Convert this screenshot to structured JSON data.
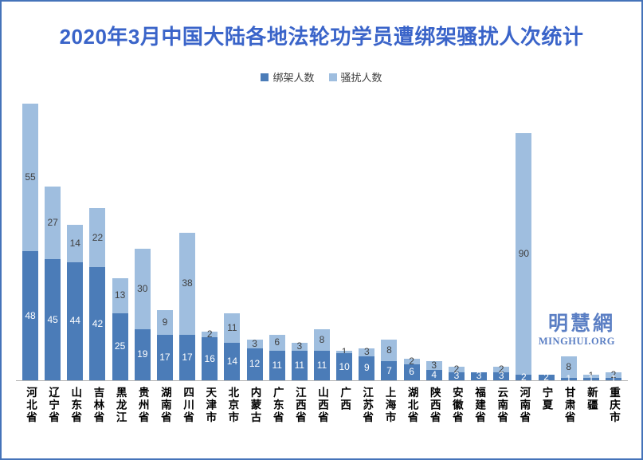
{
  "colors": {
    "frame": "#4573b9",
    "title": "#3a64c9",
    "axis": "#b3b3b3",
    "watermark": "#5b7fc4",
    "kidnapped_bar": "#4b7cb8",
    "harassed_bar": "#9fbedf",
    "kidnapped_label": "#ffffff",
    "harassed_label": "#404040"
  },
  "watermark": {
    "cn": "明慧網",
    "en": "MINGHUI.ORG"
  },
  "chart_data": {
    "type": "bar",
    "stacked": true,
    "title": "2020年3月中国大陆各地法轮功学员遭绑架骚扰人次统计",
    "xlabel": "",
    "ylabel": "",
    "ylim": [
      0,
      104
    ],
    "grid": false,
    "legend_position": "top",
    "value_labels": "center",
    "categories": [
      "河北省",
      "辽宁省",
      "山东省",
      "吉林省",
      "黑龙江",
      "贵州省",
      "湖南省",
      "四川省",
      "天津市",
      "北京市",
      "内蒙古",
      "广东省",
      "江西省",
      "山西省",
      "广西",
      "江苏省",
      "上海市",
      "湖北省",
      "陕西省",
      "安徽省",
      "福建省",
      "云南省",
      "河南省",
      "宁夏",
      "甘肃省",
      "新疆",
      "重庆市"
    ],
    "series": [
      {
        "name": "绑架人数",
        "color": "#4b7cb8",
        "label_color": "#ffffff",
        "values": [
          48,
          45,
          44,
          42,
          25,
          19,
          17,
          17,
          16,
          14,
          12,
          11,
          11,
          11,
          10,
          9,
          7,
          6,
          4,
          3,
          3,
          3,
          2,
          2,
          1,
          1,
          1
        ]
      },
      {
        "name": "骚扰人数",
        "color": "#9fbedf",
        "label_color": "#404040",
        "values": [
          55,
          27,
          14,
          22,
          13,
          30,
          9,
          38,
          2,
          11,
          3,
          6,
          3,
          8,
          1,
          3,
          8,
          2,
          3,
          2,
          0,
          2,
          90,
          0,
          8,
          1,
          2
        ]
      }
    ]
  }
}
